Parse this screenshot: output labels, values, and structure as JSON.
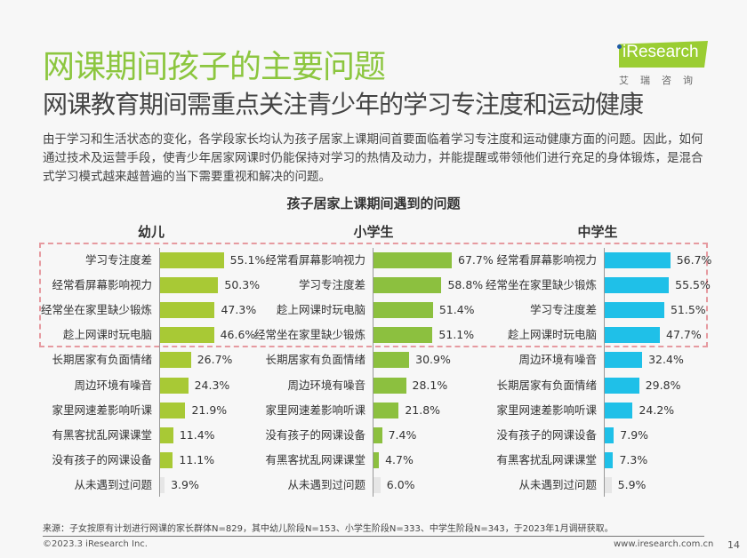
{
  "header": {
    "title": "网课期间孩子的主要问题",
    "subtitle": "网课教育期间需重点关注青少年的学习专注度和运动健康",
    "body": "由于学习和生活状态的变化，各学段家长均认为孩子居家上课期间首要面临着学习专注度和运动健康方面的问题。因此，如何通过技术及运营手段，使青少年居家网课时仍能保持对学习的热情及动力，并能提醒或带领他们进行充足的身体锻炼，是混合式学习模式越来越普遍的当下需要重视和解决的问题。",
    "logo_text": "iResearch",
    "logo_cn": "艾瑞咨询"
  },
  "chart_data": {
    "type": "bar",
    "orientation": "horizontal",
    "title": "孩子居家上课期间遇到的问题",
    "unit": "%",
    "highlight": "top 4 rows in each group enclosed by dashed pink box",
    "groups": [
      {
        "name": "幼儿",
        "color": "#a8c935",
        "categories": [
          "学习专注度差",
          "经常看屏幕影响视力",
          "经常坐在家里缺少锻炼",
          "趁上网课时玩电脑",
          "长期居家有负面情绪",
          "周边环境有噪音",
          "家里网速差影响听课",
          "有黑客扰乱网课课堂",
          "没有孩子的网课设备",
          "从未遇到过问题"
        ],
        "values": [
          55.1,
          50.3,
          47.3,
          46.6,
          26.7,
          24.3,
          21.9,
          11.4,
          11.1,
          3.9
        ],
        "labels": [
          "55.1%",
          "50.3%",
          "47.3%",
          "46.6%",
          "26.7%",
          "24.3%",
          "21.9%",
          "11.4%",
          "11.1%",
          "3.9%"
        ]
      },
      {
        "name": "小学生",
        "color": "#8cc03f",
        "categories": [
          "经常看屏幕影响视力",
          "学习专注度差",
          "趁上网课时玩电脑",
          "经常坐在家里缺少锻炼",
          "长期居家有负面情绪",
          "周边环境有噪音",
          "家里网速差影响听课",
          "没有孩子的网课设备",
          "有黑客扰乱网课课堂",
          "从未遇到过问题"
        ],
        "values": [
          67.7,
          58.8,
          51.4,
          51.1,
          30.9,
          28.1,
          21.8,
          7.4,
          4.7,
          6.0
        ],
        "labels": [
          "67.7%",
          "58.8%",
          "51.4%",
          "51.1%",
          "30.9%",
          "28.1%",
          "21.8%",
          "7.4%",
          "4.7%",
          "6.0%"
        ]
      },
      {
        "name": "中学生",
        "color": "#1fc0e8",
        "categories": [
          "经常看屏幕影响视力",
          "经常坐在家里缺少锻炼",
          "学习专注度差",
          "趁上网课时玩电脑",
          "周边环境有噪音",
          "长期居家有负面情绪",
          "家里网速差影响听课",
          "没有孩子的网课设备",
          "有黑客扰乱网课课堂",
          "从未遇到过问题"
        ],
        "values": [
          56.7,
          55.5,
          51.5,
          47.7,
          32.4,
          29.8,
          24.2,
          7.9,
          7.3,
          5.9
        ],
        "labels": [
          "56.7%",
          "55.5%",
          "51.5%",
          "47.7%",
          "32.4%",
          "29.8%",
          "24.2%",
          "7.9%",
          "7.3%",
          "5.9%"
        ]
      }
    ],
    "neutral_color": "#e6e6e6"
  },
  "footer": {
    "source": "来源：子女按原有计划进行网课的家长群体N=829，其中幼儿阶段N=153、小学生阶段N=333、中学生阶段N=343，于2023年1月调研获取。",
    "copyright": "©2023.3 iResearch Inc.",
    "website": "www.iresearch.com.cn",
    "page": "14"
  }
}
